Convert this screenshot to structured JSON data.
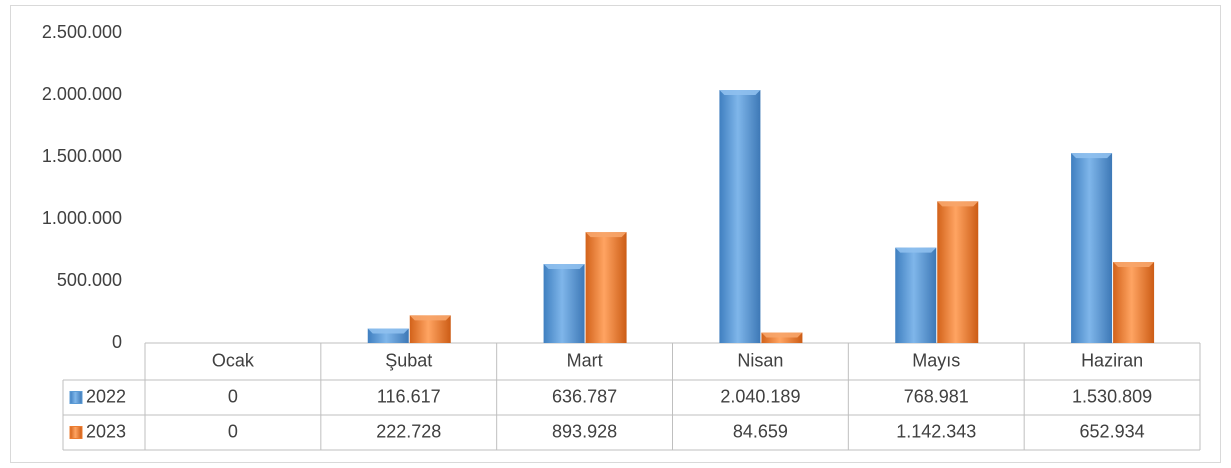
{
  "chart_data": {
    "type": "bar",
    "categories": [
      "Ocak",
      "Şubat",
      "Mart",
      "Nisan",
      "Mayıs",
      "Haziran"
    ],
    "series": [
      {
        "name": "2022",
        "color": "#5b9bd5",
        "values": [
          0,
          116617,
          636787,
          2040189,
          768981,
          1530809
        ],
        "value_labels": [
          "0",
          "116.617",
          "636.787",
          "2.040.189",
          "768.981",
          "1.530.809"
        ]
      },
      {
        "name": "2023",
        "color": "#ed7d31",
        "values": [
          0,
          222728,
          893928,
          84659,
          1142343,
          652934
        ],
        "value_labels": [
          "0",
          "222.728",
          "893.928",
          "84.659",
          "1.142.343",
          "652.934"
        ]
      }
    ],
    "ylim": [
      0,
      2500000
    ],
    "yticks": [
      0,
      {
        "value": 500000,
        "label": "500.000"
      },
      {
        "value": 1000000,
        "label": "1.000.000"
      },
      {
        "value": 1500000,
        "label": "1.500.000"
      },
      {
        "value": 2000000,
        "label": "2.000.000"
      },
      {
        "value": 2500000,
        "label": "2.500.000"
      }
    ],
    "grid": false
  }
}
